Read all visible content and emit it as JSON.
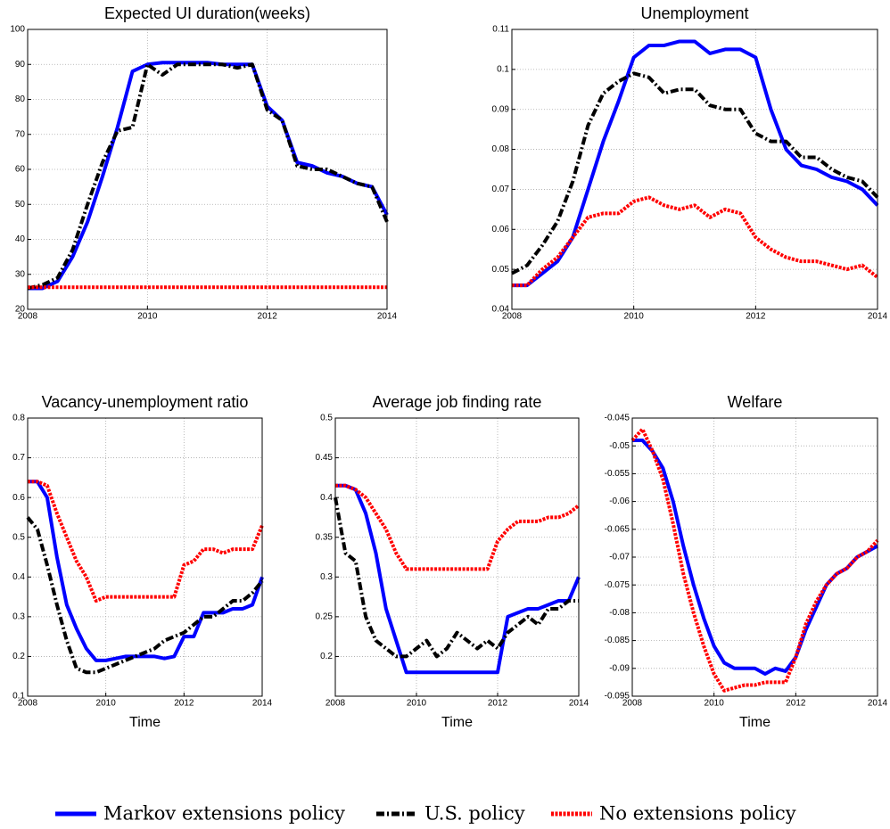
{
  "chart_data": [
    {
      "type": "line",
      "title": "Expected UI duration(weeks)",
      "x": [
        2008,
        2008.25,
        2008.5,
        2008.75,
        2009,
        2009.25,
        2009.5,
        2009.75,
        2010,
        2010.25,
        2010.5,
        2010.75,
        2011,
        2011.25,
        2011.5,
        2011.75,
        2012,
        2012.25,
        2012.5,
        2012.75,
        2013,
        2013.25,
        2013.5,
        2013.75,
        2014
      ],
      "xlim": [
        2008,
        2014
      ],
      "xticks": [
        2008,
        2010,
        2012,
        2014
      ],
      "ylim": [
        20,
        100
      ],
      "yticks": [
        20,
        30,
        40,
        50,
        60,
        70,
        80,
        90,
        100
      ],
      "grid": true,
      "legend": "lower center",
      "series": [
        {
          "name": "Markov extensions policy",
          "color": "#0000ff",
          "linestyle": "solid",
          "values": [
            26,
            26,
            28,
            35,
            45,
            58,
            72,
            88,
            90,
            90.5,
            90.5,
            90.5,
            90.5,
            90,
            90,
            90,
            78,
            74,
            62,
            61,
            59,
            58,
            56,
            55,
            47
          ]
        },
        {
          "name": "U.S. policy",
          "color": "#000000",
          "linestyle": "dash-dot",
          "values": [
            26,
            27,
            29,
            37,
            50,
            62,
            71,
            72,
            90,
            87,
            90,
            90,
            90,
            90,
            89,
            90,
            77,
            74,
            61,
            60,
            60,
            58,
            56,
            55,
            45
          ]
        },
        {
          "name": "No extensions policy",
          "color": "#ff0000",
          "linestyle": "dotted",
          "values": [
            26.3,
            26.3,
            26.3,
            26.3,
            26.3,
            26.3,
            26.3,
            26.3,
            26.3,
            26.3,
            26.3,
            26.3,
            26.3,
            26.3,
            26.3,
            26.3,
            26.3,
            26.3,
            26.3,
            26.3,
            26.3,
            26.3,
            26.3,
            26.3,
            26.3
          ]
        }
      ]
    },
    {
      "type": "line",
      "title": "Unemployment",
      "x": [
        2008,
        2008.25,
        2008.5,
        2008.75,
        2009,
        2009.25,
        2009.5,
        2009.75,
        2010,
        2010.25,
        2010.5,
        2010.75,
        2011,
        2011.25,
        2011.5,
        2011.75,
        2012,
        2012.25,
        2012.5,
        2012.75,
        2013,
        2013.25,
        2013.5,
        2013.75,
        2014
      ],
      "xlim": [
        2008,
        2014
      ],
      "xticks": [
        2008,
        2010,
        2012,
        2014
      ],
      "ylim": [
        0.04,
        0.11
      ],
      "yticks": [
        0.04,
        0.05,
        0.06,
        0.07,
        0.08,
        0.09,
        0.1,
        0.11
      ],
      "grid": true,
      "series": [
        {
          "name": "Markov extensions policy",
          "color": "#0000ff",
          "linestyle": "solid",
          "values": [
            0.046,
            0.046,
            0.049,
            0.052,
            0.058,
            0.07,
            0.082,
            0.092,
            0.103,
            0.106,
            0.106,
            0.107,
            0.107,
            0.104,
            0.105,
            0.105,
            0.103,
            0.09,
            0.08,
            0.076,
            0.075,
            0.073,
            0.072,
            0.07,
            0.066
          ]
        },
        {
          "name": "U.S. policy",
          "color": "#000000",
          "linestyle": "dash-dot",
          "values": [
            0.049,
            0.051,
            0.056,
            0.062,
            0.072,
            0.086,
            0.094,
            0.097,
            0.099,
            0.098,
            0.094,
            0.095,
            0.095,
            0.091,
            0.09,
            0.09,
            0.084,
            0.082,
            0.082,
            0.078,
            0.078,
            0.075,
            0.073,
            0.072,
            0.068
          ]
        },
        {
          "name": "No extensions policy",
          "color": "#ff0000",
          "linestyle": "dotted",
          "values": [
            0.046,
            0.046,
            0.05,
            0.053,
            0.058,
            0.063,
            0.064,
            0.064,
            0.067,
            0.068,
            0.066,
            0.065,
            0.066,
            0.063,
            0.065,
            0.064,
            0.058,
            0.055,
            0.053,
            0.052,
            0.052,
            0.051,
            0.05,
            0.051,
            0.048
          ]
        }
      ]
    },
    {
      "type": "line",
      "title": "Vacancy-unemployment ratio",
      "xlabel": "Time",
      "x": [
        2008,
        2008.25,
        2008.5,
        2008.75,
        2009,
        2009.25,
        2009.5,
        2009.75,
        2010,
        2010.25,
        2010.5,
        2010.75,
        2011,
        2011.25,
        2011.5,
        2011.75,
        2012,
        2012.25,
        2012.5,
        2012.75,
        2013,
        2013.25,
        2013.5,
        2013.75,
        2014
      ],
      "xlim": [
        2008,
        2014
      ],
      "xticks": [
        2008,
        2010,
        2012,
        2014
      ],
      "ylim": [
        0.1,
        0.8
      ],
      "yticks": [
        0.1,
        0.2,
        0.3,
        0.4,
        0.5,
        0.6,
        0.7,
        0.8
      ],
      "grid": true,
      "series": [
        {
          "name": "Markov extensions policy",
          "color": "#0000ff",
          "linestyle": "solid",
          "values": [
            0.64,
            0.64,
            0.6,
            0.45,
            0.33,
            0.27,
            0.22,
            0.19,
            0.19,
            0.195,
            0.2,
            0.2,
            0.2,
            0.2,
            0.195,
            0.2,
            0.25,
            0.25,
            0.31,
            0.31,
            0.31,
            0.32,
            0.32,
            0.33,
            0.4
          ]
        },
        {
          "name": "U.S. policy",
          "color": "#000000",
          "linestyle": "dash-dot",
          "values": [
            0.55,
            0.52,
            0.43,
            0.33,
            0.24,
            0.17,
            0.16,
            0.16,
            0.17,
            0.18,
            0.19,
            0.2,
            0.21,
            0.22,
            0.24,
            0.25,
            0.26,
            0.28,
            0.3,
            0.3,
            0.32,
            0.34,
            0.34,
            0.36,
            0.39
          ]
        },
        {
          "name": "No extensions policy",
          "color": "#ff0000",
          "linestyle": "dotted",
          "values": [
            0.64,
            0.64,
            0.63,
            0.56,
            0.5,
            0.44,
            0.4,
            0.34,
            0.35,
            0.35,
            0.35,
            0.35,
            0.35,
            0.35,
            0.35,
            0.35,
            0.43,
            0.44,
            0.47,
            0.47,
            0.46,
            0.47,
            0.47,
            0.47,
            0.53
          ]
        }
      ]
    },
    {
      "type": "line",
      "title": "Average job finding rate",
      "xlabel": "Time",
      "x": [
        2008,
        2008.25,
        2008.5,
        2008.75,
        2009,
        2009.25,
        2009.5,
        2009.75,
        2010,
        2010.25,
        2010.5,
        2010.75,
        2011,
        2011.25,
        2011.5,
        2011.75,
        2012,
        2012.25,
        2012.5,
        2012.75,
        2013,
        2013.25,
        2013.5,
        2013.75,
        2014
      ],
      "xlim": [
        2008,
        2014
      ],
      "xticks": [
        2008,
        2010,
        2012,
        2014
      ],
      "ylim": [
        0.15,
        0.5
      ],
      "yticks": [
        0.2,
        0.25,
        0.3,
        0.35,
        0.4,
        0.45,
        0.5
      ],
      "grid": true,
      "series": [
        {
          "name": "Markov extensions policy",
          "color": "#0000ff",
          "linestyle": "solid",
          "values": [
            0.415,
            0.415,
            0.41,
            0.38,
            0.33,
            0.26,
            0.22,
            0.18,
            0.18,
            0.18,
            0.18,
            0.18,
            0.18,
            0.18,
            0.18,
            0.18,
            0.18,
            0.25,
            0.255,
            0.26,
            0.26,
            0.265,
            0.27,
            0.27,
            0.3
          ]
        },
        {
          "name": "U.S. policy",
          "color": "#000000",
          "linestyle": "dash-dot",
          "values": [
            0.4,
            0.33,
            0.32,
            0.25,
            0.22,
            0.21,
            0.2,
            0.2,
            0.21,
            0.22,
            0.2,
            0.21,
            0.23,
            0.22,
            0.21,
            0.22,
            0.21,
            0.23,
            0.24,
            0.25,
            0.24,
            0.26,
            0.26,
            0.27,
            0.27
          ]
        },
        {
          "name": "No extensions policy",
          "color": "#ff0000",
          "linestyle": "dotted",
          "values": [
            0.415,
            0.415,
            0.41,
            0.4,
            0.38,
            0.36,
            0.33,
            0.31,
            0.31,
            0.31,
            0.31,
            0.31,
            0.31,
            0.31,
            0.31,
            0.31,
            0.345,
            0.36,
            0.37,
            0.37,
            0.37,
            0.375,
            0.375,
            0.38,
            0.39
          ]
        }
      ]
    },
    {
      "type": "line",
      "title": "Welfare",
      "xlabel": "Time",
      "x": [
        2008,
        2008.25,
        2008.5,
        2008.75,
        2009,
        2009.25,
        2009.5,
        2009.75,
        2010,
        2010.25,
        2010.5,
        2010.75,
        2011,
        2011.25,
        2011.5,
        2011.75,
        2012,
        2012.25,
        2012.5,
        2012.75,
        2013,
        2013.25,
        2013.5,
        2013.75,
        2014
      ],
      "xlim": [
        2008,
        2014
      ],
      "xticks": [
        2008,
        2010,
        2012,
        2014
      ],
      "ylim": [
        -0.095,
        -0.045
      ],
      "yticks": [
        -0.095,
        -0.09,
        -0.085,
        -0.08,
        -0.075,
        -0.07,
        -0.065,
        -0.06,
        -0.055,
        -0.05,
        -0.045
      ],
      "grid": true,
      "series": [
        {
          "name": "Markov extensions policy",
          "color": "#0000ff",
          "linestyle": "solid",
          "values": [
            -0.049,
            -0.049,
            -0.051,
            -0.054,
            -0.06,
            -0.068,
            -0.075,
            -0.081,
            -0.086,
            -0.089,
            -0.09,
            -0.09,
            -0.09,
            -0.091,
            -0.09,
            -0.0905,
            -0.088,
            -0.083,
            -0.079,
            -0.075,
            -0.073,
            -0.072,
            -0.07,
            -0.069,
            -0.068
          ]
        },
        {
          "name": "No extensions policy",
          "color": "#ff0000",
          "linestyle": "dotted",
          "values": [
            -0.049,
            -0.047,
            -0.051,
            -0.056,
            -0.064,
            -0.073,
            -0.08,
            -0.086,
            -0.091,
            -0.094,
            -0.0935,
            -0.093,
            -0.093,
            -0.0925,
            -0.0925,
            -0.0925,
            -0.088,
            -0.082,
            -0.078,
            -0.075,
            -0.073,
            -0.072,
            -0.07,
            -0.069,
            -0.067
          ]
        }
      ]
    }
  ]
}
